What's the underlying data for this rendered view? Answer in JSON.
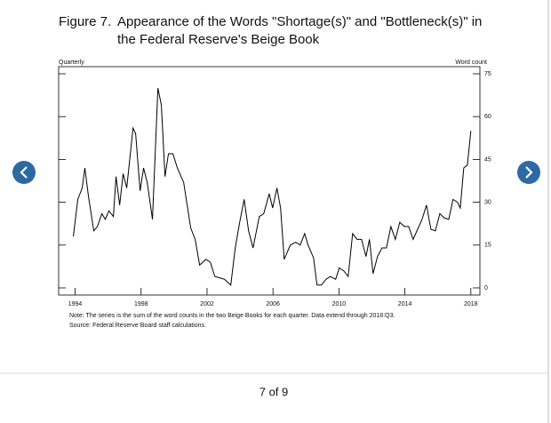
{
  "chart_data": {
    "type": "line",
    "figure_label": "Figure 7.",
    "title": [
      "Appearance of the Words \"Shortage(s)\" and \"Bottleneck(s)\" in",
      "the Federal Reserve's Beige Book"
    ],
    "left_label": "Quarterly",
    "right_label": "Word count",
    "note": "Note:  The series is the sum of the word counts in the two Beige Books for each quarter.  Data extend through 2018:Q3.",
    "source": "Source:  Federal Reserve Board staff calculations.",
    "x": [
      1993.89,
      1994.16,
      1994.43,
      1994.59,
      1994.81,
      1995.13,
      1995.35,
      1995.62,
      1995.83,
      1996.05,
      1996.32,
      1996.48,
      1996.7,
      1996.91,
      1997.13,
      1997.51,
      1997.67,
      1997.94,
      1998.15,
      1998.37,
      1998.69,
      1999.02,
      1999.23,
      1999.45,
      1999.66,
      1999.93,
      2000.2,
      2000.58,
      2001.01,
      2001.28,
      2001.55,
      2001.93,
      2002.2,
      2002.47,
      2002.79,
      2003.06,
      2003.44,
      2003.71,
      2003.98,
      2004.25,
      2004.52,
      2004.79,
      2005.17,
      2005.44,
      2005.77,
      2005.98,
      2006.24,
      2006.46,
      2006.68,
      2007.05,
      2007.38,
      2007.65,
      2007.92,
      2008.13,
      2008.46,
      2008.67,
      2008.94,
      2009.21,
      2009.48,
      2009.8,
      2010.02,
      2010.29,
      2010.56,
      2010.83,
      2011.1,
      2011.37,
      2011.64,
      2011.85,
      2012.07,
      2012.34,
      2012.61,
      2012.88,
      2013.15,
      2013.42,
      2013.69,
      2013.96,
      2014.23,
      2014.5,
      2014.77,
      2015.04,
      2015.31,
      2015.58,
      2015.85,
      2016.12,
      2016.39,
      2016.66,
      2016.92,
      2017.19,
      2017.36,
      2017.57,
      2017.79,
      2018.0
    ],
    "series": [
      {
        "name": "Word count",
        "color": "#000000",
        "values": [
          18,
          31,
          35,
          42,
          32,
          20,
          21.5,
          26,
          24,
          27,
          25,
          39,
          29,
          40,
          35,
          56,
          54,
          34,
          42,
          37,
          24,
          70,
          64,
          39,
          47,
          47,
          42,
          37,
          21,
          17,
          8,
          10,
          9,
          4,
          3.5,
          3,
          1,
          14,
          23,
          31,
          20,
          14,
          25,
          26,
          33,
          28,
          35,
          28,
          10,
          15,
          16,
          15,
          19,
          15,
          10.5,
          1,
          1,
          3,
          4,
          3,
          7,
          6,
          4,
          19,
          17,
          17,
          11,
          17,
          5,
          11,
          14,
          14,
          21.5,
          17,
          23,
          21.5,
          21.5,
          17,
          20.5,
          24,
          29,
          20.5,
          20,
          26,
          24.5,
          24,
          31,
          30,
          28,
          42,
          43,
          55
        ]
      }
    ],
    "xlim": [
      1993,
      2018.55
    ],
    "xticks": [
      1994,
      1998,
      2002,
      2006,
      2010,
      2014,
      2018
    ],
    "ylim": [
      -2.5,
      77.5
    ],
    "yticks": [
      0,
      15,
      30,
      45,
      60,
      75
    ]
  },
  "pager": {
    "label": "7 of 9"
  }
}
